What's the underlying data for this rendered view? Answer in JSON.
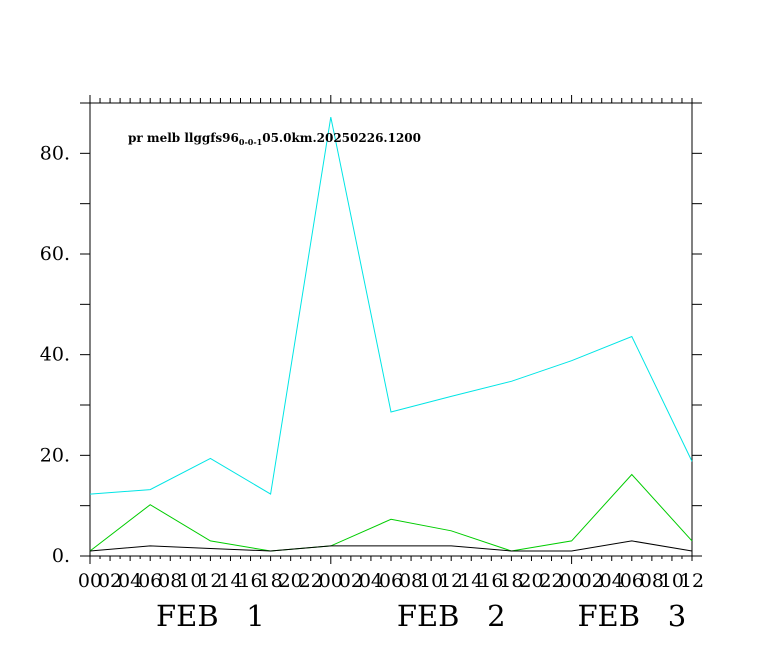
{
  "chart_data": {
    "type": "line",
    "title": {
      "main": "pr melb llggfs96",
      "subscript": "0-0-1",
      "suffix": "05.0km.20250226.1200"
    },
    "xlabel": "",
    "ylabel": "",
    "ylim": [
      0,
      90
    ],
    "yticks": [
      0,
      20,
      40,
      60,
      80
    ],
    "ytick_labels": [
      "0.",
      "20.",
      "40.",
      "60.",
      "80."
    ],
    "x_hours": [
      0,
      6,
      12,
      18,
      24,
      30,
      36,
      42,
      48,
      54,
      60
    ],
    "xlim_hours": [
      0,
      60
    ],
    "xtick_labels": [
      "00",
      "02",
      "04",
      "06",
      "08",
      "10",
      "12",
      "14",
      "16",
      "18",
      "20",
      "22",
      "00",
      "02",
      "04",
      "06",
      "08",
      "10",
      "12",
      "14",
      "16",
      "18",
      "20",
      "22",
      "00",
      "02",
      "04",
      "06",
      "08",
      "10",
      "12"
    ],
    "date_labels": [
      {
        "text": "FEB   1",
        "hour": 12
      },
      {
        "text": "FEB   2",
        "hour": 36
      },
      {
        "text": "FEB   3",
        "hour": 54
      }
    ],
    "grid": false,
    "legend": "none",
    "series": [
      {
        "color": "#00e5e5",
        "values": [
          12.3,
          13.2,
          19.4,
          12.3,
          87.2,
          28.6,
          31.7,
          34.7,
          38.8,
          43.6,
          18.8
        ]
      },
      {
        "color": "#00cc00",
        "values": [
          1.0,
          10.2,
          3.0,
          1.0,
          2.0,
          7.3,
          5.0,
          1.0,
          3.0,
          16.2,
          3.0
        ]
      },
      {
        "color": "#000000",
        "values": [
          1.0,
          2.0,
          1.5,
          1.0,
          2.0,
          2.0,
          2.0,
          1.0,
          1.0,
          3.0,
          1.0
        ]
      }
    ]
  }
}
